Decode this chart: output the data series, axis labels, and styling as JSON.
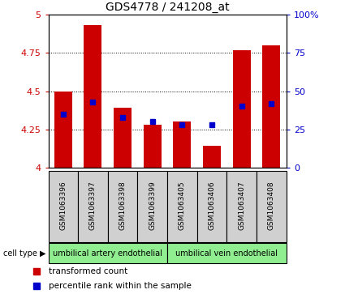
{
  "title": "GDS4778 / 241208_at",
  "samples": [
    "GSM1063396",
    "GSM1063397",
    "GSM1063398",
    "GSM1063399",
    "GSM1063405",
    "GSM1063406",
    "GSM1063407",
    "GSM1063408"
  ],
  "red_values": [
    4.5,
    4.93,
    4.39,
    4.28,
    4.3,
    4.14,
    4.77,
    4.8
  ],
  "blue_values": [
    4.35,
    4.43,
    4.33,
    4.3,
    4.28,
    4.28,
    4.4,
    4.42
  ],
  "ylim": [
    4.0,
    5.0
  ],
  "yticks": [
    4.0,
    4.25,
    4.5,
    4.75,
    5.0
  ],
  "ytick_labels": [
    "4",
    "4.25",
    "4.5",
    "4.75",
    "5"
  ],
  "right_yticks": [
    0,
    25,
    50,
    75,
    100
  ],
  "right_ytick_labels": [
    "0",
    "25",
    "50",
    "75",
    "100%"
  ],
  "bar_color": "#cc0000",
  "blue_color": "#0000cc",
  "left_tick_color": "#cc0000",
  "right_tick_color": "#0000cc",
  "grid_color": "#000000",
  "background_color": "#ffffff",
  "bar_width": 0.6,
  "group1_label": "umbilical artery endothelial",
  "group2_label": "umbilical vein endothelial",
  "group_color": "#90ee90",
  "gray_color": "#d0d0d0",
  "cell_type_label": "cell type",
  "legend_red": "transformed count",
  "legend_blue": "percentile rank within the sample",
  "blue_marker_size": 4,
  "grid_ticks": [
    4.25,
    4.5,
    4.75
  ]
}
